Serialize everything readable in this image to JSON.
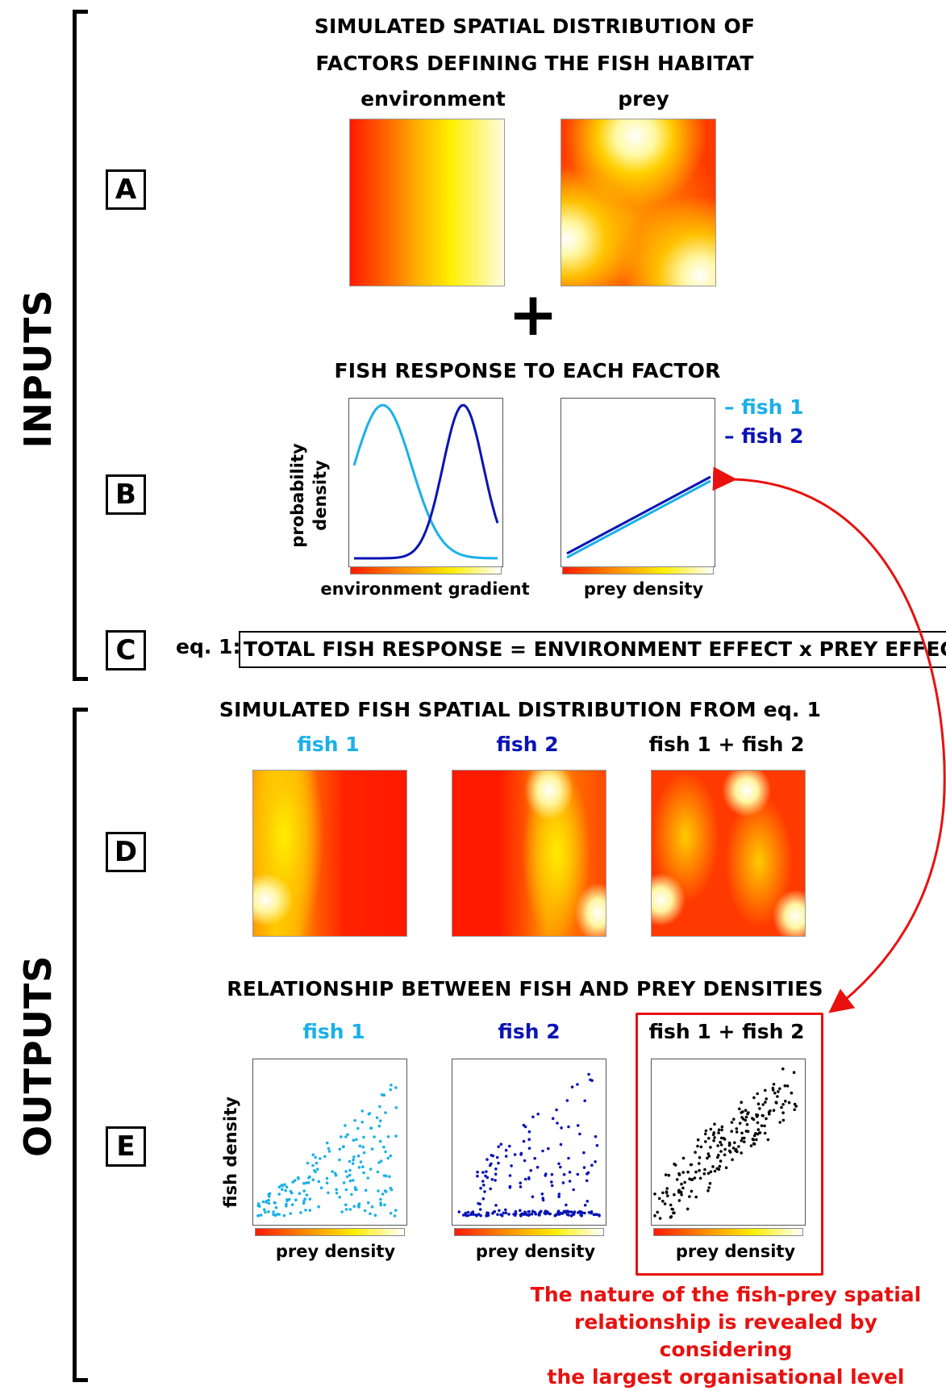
{
  "sections": {
    "inputs_label": "INPUTS",
    "outputs_label": "OUTPUTS"
  },
  "panel_letters": [
    "A",
    "B",
    "C",
    "D",
    "E"
  ],
  "panel_a": {
    "title_line1": "SIMULATED SPATIAL DISTRIBUTION OF",
    "title_line2": "FACTORS DEFINING THE FISH HABITAT",
    "map_labels": [
      "environment",
      "prey"
    ],
    "plus_symbol": "+"
  },
  "panel_b": {
    "title": "FISH RESPONSE TO EACH FACTOR",
    "ylabel_line1": "probability",
    "ylabel_line2": "density",
    "xlabel_left": "environment gradient",
    "xlabel_right": "prey density",
    "legend": [
      {
        "label": "– fish 1",
        "color": "#1ab0e8"
      },
      {
        "label": "– fish 2",
        "color": "#0a14b4"
      }
    ]
  },
  "panel_c": {
    "eq_prefix": "eq. 1:",
    "equation": "TOTAL FISH RESPONSE = ENVIRONMENT EFFECT  x  PREY EFFECT"
  },
  "panel_d": {
    "title": "SIMULATED FISH SPATIAL DISTRIBUTION FROM  eq. 1",
    "map_labels": [
      {
        "label": "fish 1",
        "color": "#1ab0e8"
      },
      {
        "label": "fish 2",
        "color": "#0a14b4"
      },
      {
        "label": "fish  1 + fish 2",
        "color": "#000000"
      }
    ]
  },
  "panel_e": {
    "title": "RELATIONSHIP BETWEEN FISH AND PREY DENSITIES",
    "ylabel": "fish density",
    "xlabel": "prey density",
    "plot_labels": [
      {
        "label": "fish 1",
        "color": "#1ab0e8"
      },
      {
        "label": "fish 2",
        "color": "#0a14b4"
      },
      {
        "label": "fish  1 + fish 2",
        "color": "#000000"
      }
    ]
  },
  "note": {
    "line1": "The nature of the fish-prey spatial",
    "line2": "relationship is revealed by considering",
    "line3": "the  largest  organisational level",
    "color": "#e8110f"
  }
}
